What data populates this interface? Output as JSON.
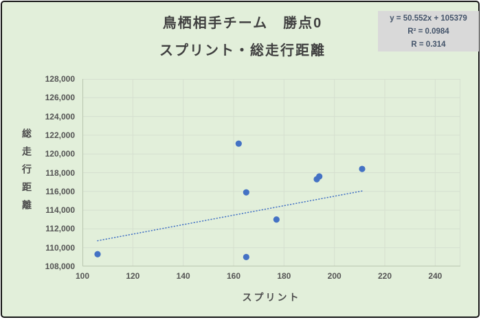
{
  "window": {
    "bg": "#ffffff",
    "frame_border": "#141414",
    "chart_bg": "#e2efda"
  },
  "title": {
    "line1": "鳥栖相手チーム　勝点0",
    "line2": "スプリント・総走行距離",
    "color": "#404040"
  },
  "equation_box": {
    "lines": [
      "y = 50.552x + 105379",
      "R² = 0.0984",
      "R = 0.314"
    ],
    "bg": "#d9d9d9",
    "text_color": "#44546a"
  },
  "axis_style": {
    "tick_color": "#545454",
    "gridline_color": "#d5dfcf",
    "axis_line_color": "#b9c5ae"
  },
  "chart_data": {
    "type": "scatter",
    "title": "鳥栖相手チーム　勝点0　スプリント・総走行距離",
    "xlabel": "スプリント",
    "ylabel": "総走行距離",
    "xlim": [
      100,
      250
    ],
    "ylim": [
      108000,
      128000
    ],
    "x_ticks": [
      100,
      120,
      140,
      160,
      180,
      200,
      220,
      240
    ],
    "y_ticks": [
      108000,
      110000,
      112000,
      114000,
      116000,
      118000,
      120000,
      122000,
      124000,
      126000,
      128000
    ],
    "grid": true,
    "legend_position": "none",
    "marker_color": "#4472c4",
    "marker_radius": 4.6,
    "points": [
      {
        "x": 106,
        "y": 109300
      },
      {
        "x": 162,
        "y": 121100
      },
      {
        "x": 165,
        "y": 109000
      },
      {
        "x": 165,
        "y": 115900
      },
      {
        "x": 177,
        "y": 113000
      },
      {
        "x": 193,
        "y": 117300
      },
      {
        "x": 194,
        "y": 117600
      },
      {
        "x": 211,
        "y": 118400
      }
    ],
    "trendline": {
      "equation": "y = 50.552x + 105379",
      "slope": 50.552,
      "intercept": 105379,
      "x_start": 106,
      "x_end": 211,
      "style": "dotted",
      "color": "#4472c4",
      "r_squared": 0.0984,
      "r": 0.314
    }
  }
}
